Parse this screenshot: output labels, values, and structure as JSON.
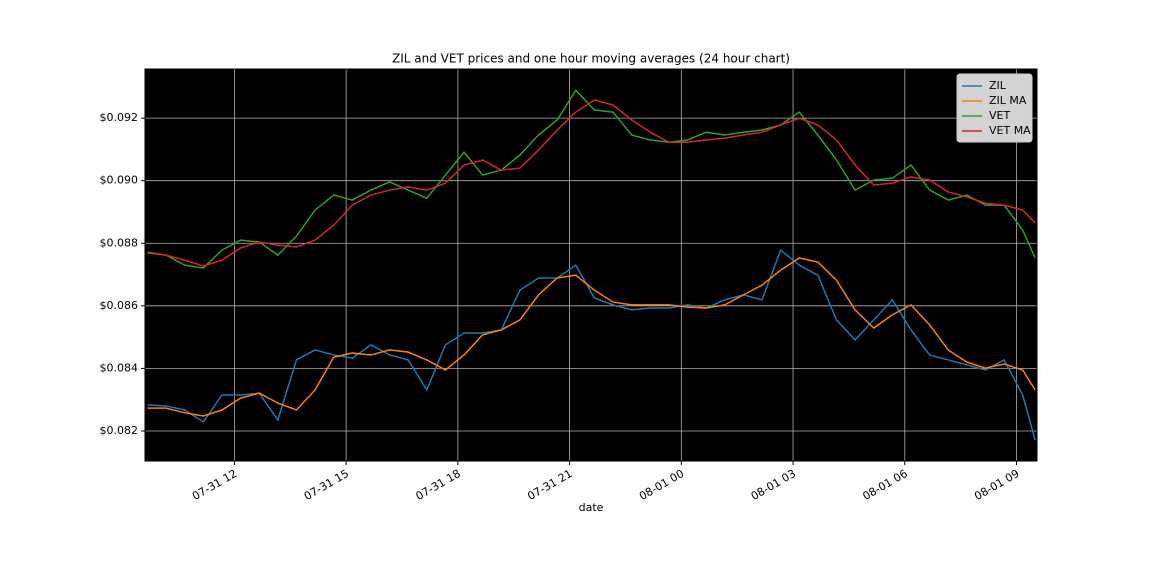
{
  "chart_data": {
    "type": "line",
    "title": "ZIL and VET prices and one hour moving averages (24 hour chart)",
    "x_label": "date",
    "x": [
      "07-31 09:40",
      "07-31 10:10",
      "07-31 10:40",
      "07-31 11:10",
      "07-31 11:40",
      "07-31 12:10",
      "07-31 12:40",
      "07-31 13:10",
      "07-31 13:40",
      "07-31 14:10",
      "07-31 14:40",
      "07-31 15:10",
      "07-31 15:40",
      "07-31 16:10",
      "07-31 16:40",
      "07-31 17:10",
      "07-31 17:40",
      "07-31 18:10",
      "07-31 18:40",
      "07-31 19:10",
      "07-31 19:40",
      "07-31 20:10",
      "07-31 20:40",
      "07-31 21:10",
      "07-31 21:40",
      "07-31 22:10",
      "07-31 22:40",
      "07-31 23:10",
      "07-31 23:40",
      "08-01 00:10",
      "08-01 00:40",
      "08-01 01:10",
      "08-01 01:40",
      "08-01 02:10",
      "08-01 02:40",
      "08-01 03:10",
      "08-01 03:40",
      "08-01 04:10",
      "08-01 04:40",
      "08-01 05:10",
      "08-01 05:40",
      "08-01 06:10",
      "08-01 06:40",
      "08-01 07:10",
      "08-01 07:40",
      "08-01 08:10",
      "08-01 08:40",
      "08-01 09:10",
      "08-01 09:30"
    ],
    "series": [
      {
        "name": "ZIL",
        "color": "#1f77b4",
        "values": [
          0.08283,
          0.0828,
          0.08267,
          0.08229,
          0.08315,
          0.08315,
          0.08321,
          0.08235,
          0.08427,
          0.08459,
          0.08443,
          0.08433,
          0.08475,
          0.08443,
          0.08427,
          0.08331,
          0.08475,
          0.08513,
          0.08513,
          0.08523,
          0.0865,
          0.08689,
          0.08689,
          0.0873,
          0.08625,
          0.08603,
          0.08587,
          0.08593,
          0.08593,
          0.08603,
          0.08593,
          0.08619,
          0.08635,
          0.08619,
          0.08778,
          0.0873,
          0.08698,
          0.08555,
          0.08491,
          0.08555,
          0.08619,
          0.08523,
          0.08443,
          0.08427,
          0.08411,
          0.08395,
          0.08427,
          0.08315,
          0.08171
        ]
      },
      {
        "name": "ZIL MA",
        "color": "#ff7f0e",
        "values": [
          0.08273,
          0.08273,
          0.08258,
          0.08248,
          0.08267,
          0.08305,
          0.08321,
          0.08289,
          0.08267,
          0.08331,
          0.08436,
          0.08449,
          0.08443,
          0.08459,
          0.08452,
          0.08427,
          0.08395,
          0.08443,
          0.08507,
          0.08523,
          0.08555,
          0.08635,
          0.08689,
          0.08698,
          0.0865,
          0.08612,
          0.08603,
          0.08603,
          0.08603,
          0.08596,
          0.08593,
          0.08603,
          0.08635,
          0.08666,
          0.08714,
          0.08753,
          0.0874,
          0.08682,
          0.08587,
          0.08529,
          0.08571,
          0.08603,
          0.08539,
          0.08459,
          0.0842,
          0.08401,
          0.08414,
          0.08395,
          0.08331
        ]
      },
      {
        "name": "VET",
        "color": "#2ca02c",
        "values": [
          0.08769,
          0.08762,
          0.0873,
          0.08721,
          0.08778,
          0.0881,
          0.08804,
          0.08762,
          0.08823,
          0.08906,
          0.08954,
          0.08938,
          0.0897,
          0.08996,
          0.0897,
          0.08944,
          0.09018,
          0.09091,
          0.09018,
          0.09034,
          0.09082,
          0.09146,
          0.09194,
          0.09289,
          0.09226,
          0.09219,
          0.09146,
          0.0913,
          0.09123,
          0.0913,
          0.09155,
          0.09146,
          0.09155,
          0.09162,
          0.09178,
          0.09219,
          0.09146,
          0.09066,
          0.0897,
          0.09002,
          0.09008,
          0.0905,
          0.0897,
          0.08938,
          0.08954,
          0.08922,
          0.08922,
          0.08842,
          0.08753
        ]
      },
      {
        "name": "VET MA",
        "color": "#d62728",
        "values": [
          0.08772,
          0.08762,
          0.08746,
          0.08727,
          0.08746,
          0.08785,
          0.08804,
          0.08794,
          0.08788,
          0.0881,
          0.08858,
          0.08922,
          0.08954,
          0.0897,
          0.0898,
          0.0897,
          0.08992,
          0.0905,
          0.09066,
          0.09034,
          0.0904,
          0.09098,
          0.09162,
          0.09219,
          0.09258,
          0.09242,
          0.09194,
          0.09155,
          0.09123,
          0.09123,
          0.0913,
          0.09136,
          0.09146,
          0.09155,
          0.09178,
          0.092,
          0.09178,
          0.0913,
          0.0905,
          0.08986,
          0.08992,
          0.09012,
          0.09002,
          0.08964,
          0.08948,
          0.08928,
          0.08922,
          0.08906,
          0.08865
        ]
      }
    ],
    "xlim": [
      "07-31 09:36",
      "08-01 09:33"
    ],
    "xticks": [
      {
        "value": "07-31 12:00",
        "label": "07-31 12"
      },
      {
        "value": "07-31 15:00",
        "label": "07-31 15"
      },
      {
        "value": "07-31 18:00",
        "label": "07-31 18"
      },
      {
        "value": "07-31 21:00",
        "label": "07-31 21"
      },
      {
        "value": "08-01 00:00",
        "label": "08-01 00"
      },
      {
        "value": "08-01 03:00",
        "label": "08-01 03"
      },
      {
        "value": "08-01 06:00",
        "label": "08-01 06"
      },
      {
        "value": "08-01 09:00",
        "label": "08-01 09"
      }
    ],
    "ylim": [
      0.08104,
      0.09357
    ],
    "yticks": [
      {
        "value": 0.082,
        "label": "$0.082"
      },
      {
        "value": 0.084,
        "label": "$0.084"
      },
      {
        "value": 0.086,
        "label": "$0.086"
      },
      {
        "value": 0.088,
        "label": "$0.088"
      },
      {
        "value": 0.09,
        "label": "$0.090"
      },
      {
        "value": 0.092,
        "label": "$0.092"
      }
    ],
    "grid": true,
    "background": "#000000",
    "legend": "upper-right"
  }
}
